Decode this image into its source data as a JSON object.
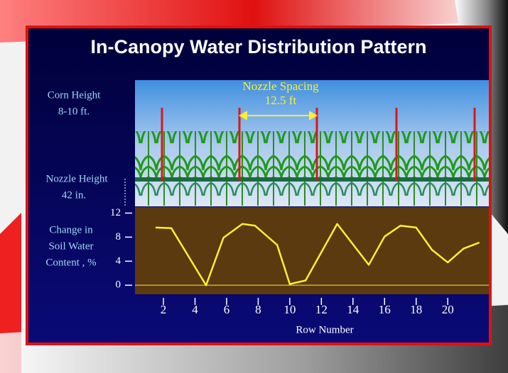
{
  "chart_data": {
    "type": "line",
    "title": "In-Canopy Water Distribution Pattern",
    "annotations": [
      {
        "text": "Corn Height"
      },
      {
        "text": "8-10 ft."
      },
      {
        "text": "Nozzle Spacing"
      },
      {
        "text": "12.5 ft"
      },
      {
        "text": "Nozzle Height"
      },
      {
        "text": "42 in."
      }
    ],
    "y_label": [
      "Change in",
      "Soil Water",
      "Content , %"
    ],
    "x_label": "Row Number",
    "series": [
      {
        "color": "#ffee33",
        "x": [
          1.5,
          2.5,
          4.7,
          5.8,
          7,
          7.8,
          9.2,
          10,
          11,
          13,
          15,
          16,
          17,
          18,
          19,
          20,
          21,
          22
        ],
        "values": [
          9.6,
          9.5,
          0,
          7.9,
          10.2,
          9.9,
          6.7,
          0.2,
          0.8,
          10.2,
          3.4,
          8.1,
          9.9,
          9.6,
          5.9,
          3.8,
          6.1,
          7.1
        ]
      }
    ],
    "xlim": [
      0.2,
      22.6
    ],
    "ylim": [
      -1.5,
      13
    ],
    "xticks": [
      2,
      4,
      6,
      8,
      10,
      12,
      14,
      16,
      18,
      20
    ],
    "yticks": [
      0,
      4,
      8,
      12
    ]
  }
}
